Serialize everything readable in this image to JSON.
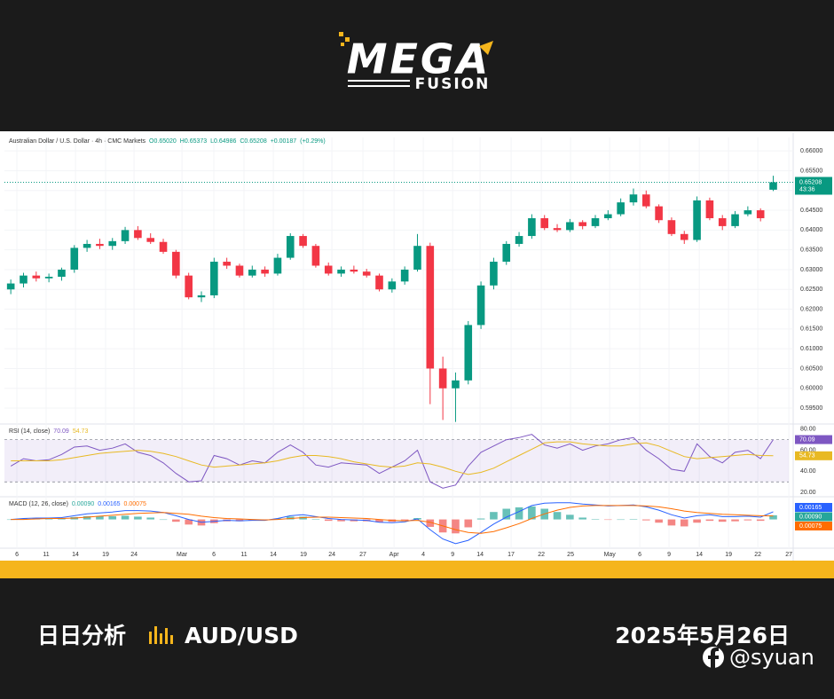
{
  "brand": {
    "name": "MEGA",
    "sub": "FUSION"
  },
  "chart_data": {
    "type": "candlestick",
    "symbol": "Australian Dollar / U.S. Dollar · 4h · CMC Markets",
    "readout": [
      {
        "value": 0.6502,
        "label": "O0.65020"
      },
      {
        "value": 0.65373,
        "label": "H0.65373"
      },
      {
        "value": 0.64986,
        "label": "L0.64986"
      },
      {
        "value": 0.65208,
        "label": "C0.65208"
      },
      {
        "value": 0.00187,
        "label": "+0.00187"
      },
      {
        "value": 0.29,
        "label": "(+0.29%)"
      }
    ],
    "open": [
      0.625,
      0.6265,
      0.6285,
      0.6278,
      0.6282,
      0.63,
      0.6355,
      0.6365,
      0.636,
      0.6372,
      0.64,
      0.638,
      0.637,
      0.6345,
      0.6285,
      0.623,
      0.6235,
      0.632,
      0.631,
      0.6285,
      0.63,
      0.629,
      0.633,
      0.6385,
      0.636,
      0.631,
      0.629,
      0.63,
      0.6295,
      0.6285,
      0.625,
      0.627,
      0.63,
      0.636,
      0.605,
      0.6,
      0.602,
      0.616,
      0.626,
      0.632,
      0.6365,
      0.6385,
      0.643,
      0.6405,
      0.64,
      0.642,
      0.641,
      0.643,
      0.644,
      0.647,
      0.649,
      0.646,
      0.6425,
      0.639,
      0.6375,
      0.6475,
      0.643,
      0.641,
      0.644,
      0.645,
      0.6502
    ],
    "high": [
      0.6275,
      0.6292,
      0.6295,
      0.629,
      0.6305,
      0.6362,
      0.6375,
      0.6378,
      0.638,
      0.6408,
      0.641,
      0.6392,
      0.6378,
      0.635,
      0.6292,
      0.6245,
      0.633,
      0.633,
      0.6315,
      0.631,
      0.6308,
      0.634,
      0.6392,
      0.639,
      0.6365,
      0.6318,
      0.6308,
      0.631,
      0.6302,
      0.629,
      0.6278,
      0.6308,
      0.639,
      0.6368,
      0.608,
      0.604,
      0.617,
      0.627,
      0.633,
      0.6372,
      0.6395,
      0.644,
      0.6438,
      0.6415,
      0.6428,
      0.6425,
      0.6438,
      0.645,
      0.648,
      0.6505,
      0.65,
      0.6465,
      0.6432,
      0.6398,
      0.6485,
      0.6482,
      0.6438,
      0.6448,
      0.646,
      0.6455,
      0.65373
    ],
    "low": [
      0.6238,
      0.6255,
      0.627,
      0.6268,
      0.6272,
      0.6292,
      0.6345,
      0.6352,
      0.635,
      0.6365,
      0.6375,
      0.6365,
      0.634,
      0.6278,
      0.6225,
      0.6218,
      0.6228,
      0.6302,
      0.628,
      0.628,
      0.6282,
      0.6285,
      0.6325,
      0.6355,
      0.6305,
      0.6285,
      0.6282,
      0.629,
      0.628,
      0.6245,
      0.6242,
      0.6262,
      0.6295,
      0.596,
      0.592,
      0.5915,
      0.601,
      0.615,
      0.625,
      0.6312,
      0.6358,
      0.6378,
      0.64,
      0.6395,
      0.6395,
      0.6402,
      0.6405,
      0.6425,
      0.6435,
      0.6462,
      0.6455,
      0.6418,
      0.6385,
      0.6365,
      0.637,
      0.6425,
      0.64,
      0.6405,
      0.6435,
      0.6422,
      0.64986
    ],
    "close": [
      0.6265,
      0.6285,
      0.6278,
      0.6282,
      0.63,
      0.6355,
      0.6365,
      0.636,
      0.6372,
      0.64,
      0.638,
      0.637,
      0.6345,
      0.6285,
      0.623,
      0.6235,
      0.632,
      0.631,
      0.6285,
      0.63,
      0.629,
      0.633,
      0.6385,
      0.636,
      0.631,
      0.629,
      0.63,
      0.6295,
      0.6285,
      0.625,
      0.627,
      0.63,
      0.636,
      0.605,
      0.6,
      0.602,
      0.616,
      0.626,
      0.632,
      0.6365,
      0.6385,
      0.643,
      0.6405,
      0.64,
      0.642,
      0.641,
      0.643,
      0.644,
      0.647,
      0.649,
      0.646,
      0.6425,
      0.639,
      0.6375,
      0.6475,
      0.643,
      0.641,
      0.644,
      0.645,
      0.643,
      0.65208
    ],
    "up_color": "#089981",
    "down_color": "#f23645",
    "xlim": [
      -0.5,
      61.5
    ],
    "xticks": [
      {
        "value": 0.48,
        "label": "6"
      },
      {
        "value": 2.78,
        "label": "11"
      },
      {
        "value": 5.09,
        "label": "14"
      },
      {
        "value": 7.46,
        "label": "19"
      },
      {
        "value": 9.7,
        "label": "24"
      },
      {
        "value": 13.47,
        "label": "Mar"
      },
      {
        "value": 15.98,
        "label": "6"
      },
      {
        "value": 18.35,
        "label": "11"
      },
      {
        "value": 20.66,
        "label": "14"
      },
      {
        "value": 23.03,
        "label": "19"
      },
      {
        "value": 25.27,
        "label": "24"
      },
      {
        "value": 27.71,
        "label": "27"
      },
      {
        "value": 30.16,
        "label": "Apr"
      },
      {
        "value": 32.46,
        "label": "4"
      },
      {
        "value": 34.77,
        "label": "9"
      },
      {
        "value": 36.93,
        "label": "14"
      },
      {
        "value": 39.37,
        "label": "17"
      },
      {
        "value": 41.75,
        "label": "22"
      },
      {
        "value": 44.05,
        "label": "25"
      },
      {
        "value": 47.13,
        "label": "May"
      },
      {
        "value": 49.5,
        "label": "6"
      },
      {
        "value": 51.8,
        "label": "9"
      },
      {
        "value": 54.18,
        "label": "14"
      },
      {
        "value": 56.48,
        "label": "19"
      },
      {
        "value": 58.79,
        "label": "22"
      },
      {
        "value": 61.23,
        "label": "27"
      }
    ],
    "ylim": [
      0.5912,
      0.6634
    ],
    "yticks": [
      {
        "value": 0.66,
        "label": "0.66000"
      },
      {
        "value": 0.655,
        "label": "0.65500"
      },
      {
        "value": 0.65,
        "label": "0.65000"
      },
      {
        "value": 0.645,
        "label": "0.64500"
      },
      {
        "value": 0.64,
        "label": "0.64000"
      },
      {
        "value": 0.635,
        "label": "0.63500"
      },
      {
        "value": 0.63,
        "label": "0.63000"
      },
      {
        "value": 0.625,
        "label": "0.62500"
      },
      {
        "value": 0.62,
        "label": "0.62000"
      },
      {
        "value": 0.615,
        "label": "0.61500"
      },
      {
        "value": 0.61,
        "label": "0.61000"
      },
      {
        "value": 0.605,
        "label": "0.60500"
      },
      {
        "value": 0.6,
        "label": "0.60000"
      },
      {
        "value": 0.595,
        "label": "0.59500"
      }
    ],
    "grid": true,
    "last_price": {
      "value": 0.65208,
      "label": "0.65208"
    },
    "countdown": "43:36",
    "indicators": [
      {
        "type": "rsi",
        "name": "RSI (14, close)",
        "ylim": [
          18.4,
          83.2
        ],
        "yticks": [
          {
            "value": 80,
            "label": "80.00"
          },
          {
            "value": 60,
            "label": "60.00"
          },
          {
            "value": 40,
            "label": "40.00"
          },
          {
            "value": 20,
            "label": "20.00"
          }
        ],
        "band": [
          30,
          70
        ],
        "series": [
          {
            "color": "#7e57c2",
            "values": [
              45,
              52,
              50,
              51,
              56,
              63,
              64,
              60,
              62,
              66,
              58,
              55,
              48,
              38,
              30,
              31,
              55,
              52,
              46,
              50,
              48,
              58,
              65,
              58,
              46,
              44,
              48,
              47,
              46,
              38,
              44,
              50,
              60,
              30,
              24,
              27,
              45,
              58,
              64,
              70,
              72,
              75,
              65,
              62,
              66,
              60,
              64,
              66,
              70,
              72,
              60,
              52,
              42,
              40,
              66,
              54,
              48,
              58,
              60,
              52,
              70.09
            ]
          },
          {
            "color": "#e8b923",
            "values": [
              50,
              50,
              50,
              50,
              51,
              53,
              55,
              57,
              58,
              59,
              60,
              59,
              57,
              54,
              50,
              46,
              44,
              45,
              46,
              47,
              48,
              50,
              53,
              55,
              55,
              54,
              52,
              49,
              47,
              45,
              44,
              45,
              48,
              47,
              44,
              40,
              37,
              39,
              43,
              49,
              55,
              61,
              67,
              68,
              68,
              66,
              65,
              64,
              64,
              66,
              67,
              64,
              59,
              54,
              52,
              53,
              54,
              55,
              56,
              55,
              54.73
            ]
          }
        ]
      },
      {
        "type": "macd",
        "name": "MACD (12, 26, close)",
        "ylim": [
          -0.006,
          0.0045
        ],
        "up_color": "#26a69a",
        "down_color": "#ef5350",
        "histogram": [
          0,
          0.0002,
          0.0002,
          0.0001,
          0.0002,
          0.0005,
          0.0007,
          0.0007,
          0.0007,
          0.0008,
          0.0006,
          0.0004,
          0.0,
          -0.0005,
          -0.0011,
          -0.0013,
          -0.0008,
          -0.0004,
          -0.0004,
          -0.0002,
          -0.0001,
          0.0002,
          0.0006,
          0.0006,
          0.0001,
          -0.0003,
          -0.0004,
          -0.0004,
          -0.0004,
          -0.0006,
          -0.0005,
          -0.0002,
          0.0003,
          -0.0016,
          -0.0028,
          -0.003,
          -0.0017,
          0.0002,
          0.0016,
          0.0023,
          0.0026,
          0.0028,
          0.0023,
          0.0016,
          0.001,
          0.0004,
          0.0001,
          -0.0001,
          0.0,
          0.0001,
          -0.0002,
          -0.0007,
          -0.0013,
          -0.0015,
          -0.0007,
          -0.0003,
          -0.0005,
          -0.0004,
          -0.0002,
          -0.0003,
          0.0009
        ],
        "series": [
          {
            "color": "#2962ff",
            "values": [
              0.0,
              0.0002,
              0.0003,
              0.0003,
              0.0004,
              0.0008,
              0.0012,
              0.0014,
              0.0016,
              0.0019,
              0.0019,
              0.0018,
              0.0015,
              0.0008,
              0.0,
              -0.0006,
              -0.0004,
              -0.0002,
              -0.0003,
              -0.0002,
              -0.0002,
              0.0002,
              0.0008,
              0.001,
              0.0006,
              0.0002,
              0.0,
              -0.0001,
              -0.0002,
              -0.0006,
              -0.0007,
              -0.0005,
              0.0001,
              -0.0022,
              -0.0042,
              -0.0052,
              -0.0045,
              -0.0028,
              -0.001,
              0.0005,
              0.0017,
              0.003,
              0.0035,
              0.0036,
              0.0036,
              0.0033,
              0.0031,
              0.0029,
              0.003,
              0.0031,
              0.0027,
              0.002,
              0.001,
              0.0003,
              0.0008,
              0.001,
              0.0006,
              0.0006,
              0.0007,
              0.0005,
              0.00165
            ]
          },
          {
            "color": "#ff6d00",
            "values": [
              0.0,
              0.0,
              0.0001,
              0.0002,
              0.0002,
              0.0003,
              0.0005,
              0.0007,
              0.0009,
              0.0011,
              0.0013,
              0.0014,
              0.0015,
              0.0013,
              0.0011,
              0.0007,
              0.0004,
              0.0002,
              0.0001,
              0.0,
              -0.0001,
              0.0,
              0.0002,
              0.0004,
              0.0005,
              0.0005,
              0.0004,
              0.0003,
              0.0002,
              0.0,
              -0.0002,
              -0.0003,
              -0.0002,
              -0.0006,
              -0.0014,
              -0.0022,
              -0.0028,
              -0.003,
              -0.0026,
              -0.0018,
              -0.0009,
              0.0002,
              0.0012,
              0.002,
              0.0026,
              0.0029,
              0.003,
              0.003,
              0.003,
              0.003,
              0.0029,
              0.0027,
              0.0023,
              0.0018,
              0.0015,
              0.0013,
              0.0011,
              0.001,
              0.0009,
              0.0008,
              0.00075
            ]
          }
        ],
        "readout": [
          {
            "value": 0.0009,
            "label": "0.00090"
          },
          {
            "value": 0.00165,
            "label": "0.00165"
          },
          {
            "value": 0.00075,
            "label": "0.00075"
          }
        ]
      }
    ]
  },
  "footer": {
    "title": "日日分析",
    "pair": "AUD/USD",
    "date": "2025年5月26日",
    "handle": "@syuan"
  }
}
